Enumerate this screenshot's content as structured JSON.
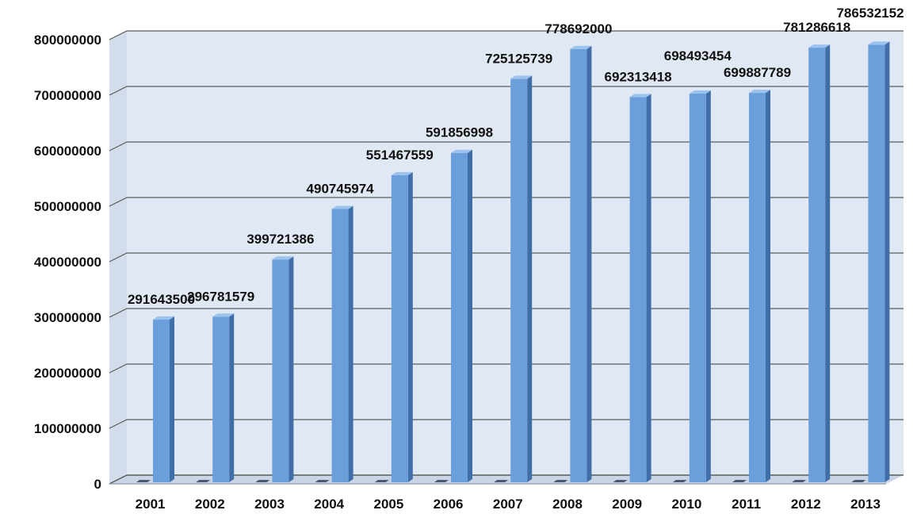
{
  "chart_data": {
    "type": "bar",
    "title": "",
    "xlabel": "",
    "ylabel": "",
    "categories": [
      "2001",
      "2002",
      "2003",
      "2004",
      "2005",
      "2006",
      "2007",
      "2008",
      "2009",
      "2010",
      "2011",
      "2012",
      "2013"
    ],
    "values": [
      291643500,
      296781579,
      399721386,
      490745974,
      551467559,
      591856998,
      725125739,
      778692000,
      692313418,
      698493454,
      699887789,
      781286618,
      786532152
    ],
    "data_labels": [
      "291643500",
      "296781579",
      "399721386",
      "490745974",
      "551467559",
      "591856998",
      "725125739",
      "778692000",
      "692313418",
      "698493454",
      "699887789",
      "781286618",
      "786532152"
    ],
    "ylim": [
      0,
      800000000
    ],
    "yticks": [
      0,
      100000000,
      200000000,
      300000000,
      400000000,
      500000000,
      600000000,
      700000000,
      800000000
    ],
    "ytick_labels": [
      "0",
      "100000000",
      "200000000",
      "300000000",
      "400000000",
      "500000000",
      "600000000",
      "700000000",
      "800000000"
    ],
    "grid": true,
    "legend": "none",
    "style": "3d-column",
    "colors": {
      "bar_front": "#6a9fdc",
      "bar_side": "#3f6ea8",
      "bar_top": "#9cc2ee",
      "wall": "#dfe8f3",
      "floor": "#c9d5e4",
      "gridline": "#5b5b5b",
      "text": "#111111"
    }
  }
}
